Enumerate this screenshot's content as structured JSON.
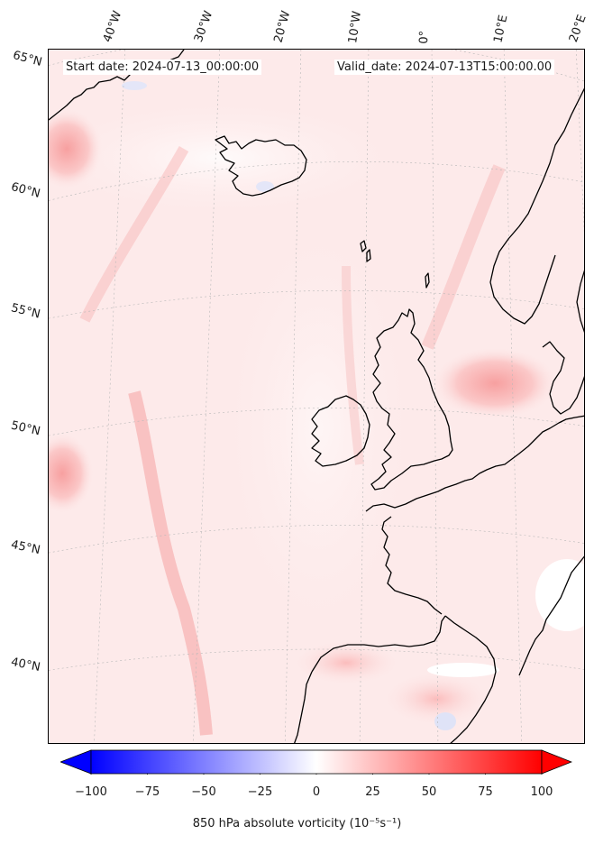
{
  "header": {
    "start_date": "Start date: 2024-07-13_00:00:00",
    "valid_date": "Valid_date: 2024-07-13T15:00:00.00"
  },
  "longitude_labels": [
    "40°W",
    "30°W",
    "20°W",
    "10°W",
    "0°",
    "10°E",
    "20°E"
  ],
  "latitude_labels": [
    "65°N",
    "60°N",
    "55°N",
    "50°N",
    "45°N",
    "40°N"
  ],
  "colorbar": {
    "min": -100,
    "max": 100,
    "ticks": [
      "−100",
      "−75",
      "−50",
      "−25",
      "0",
      "25",
      "50",
      "75",
      "100"
    ],
    "label": "850 hPa absolute vorticity (10$^{-5}$s$^{-1}$)",
    "label_display": "850 hPa absolute vorticity (10⁻⁵s⁻¹)",
    "colormap": "bwr",
    "negative_color": "#0000ff",
    "zero_color": "#ffffff",
    "positive_color": "#ff0000"
  },
  "map": {
    "field_base_color": "#fde9e9",
    "coastline_color": "#000000",
    "gridline_color": "#b0b0b0"
  }
}
